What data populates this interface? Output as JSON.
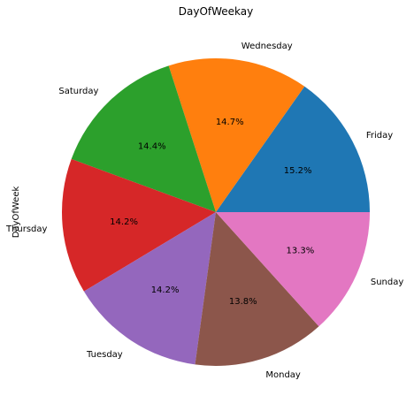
{
  "chart_data": {
    "type": "pie",
    "title": "DayOfWeekay",
    "ylabel": "DayOfWeek",
    "start_angle_deg": 0,
    "direction": "counterclockwise",
    "slices": [
      {
        "label": "Friday",
        "value": 15.2,
        "pct_label": "15.2%",
        "color": "#1f77b4"
      },
      {
        "label": "Wednesday",
        "value": 14.7,
        "pct_label": "14.7%",
        "color": "#ff7f0e"
      },
      {
        "label": "Saturday",
        "value": 14.4,
        "pct_label": "14.4%",
        "color": "#2ca02c"
      },
      {
        "label": "Thursday",
        "value": 14.2,
        "pct_label": "14.2%",
        "color": "#d62728"
      },
      {
        "label": "Tuesday",
        "value": 14.2,
        "pct_label": "14.2%",
        "color": "#9467bd"
      },
      {
        "label": "Monday",
        "value": 13.8,
        "pct_label": "13.8%",
        "color": "#8c564b"
      },
      {
        "label": "Sunday",
        "value": 13.3,
        "pct_label": "13.3%",
        "color": "#e377c2"
      }
    ]
  }
}
